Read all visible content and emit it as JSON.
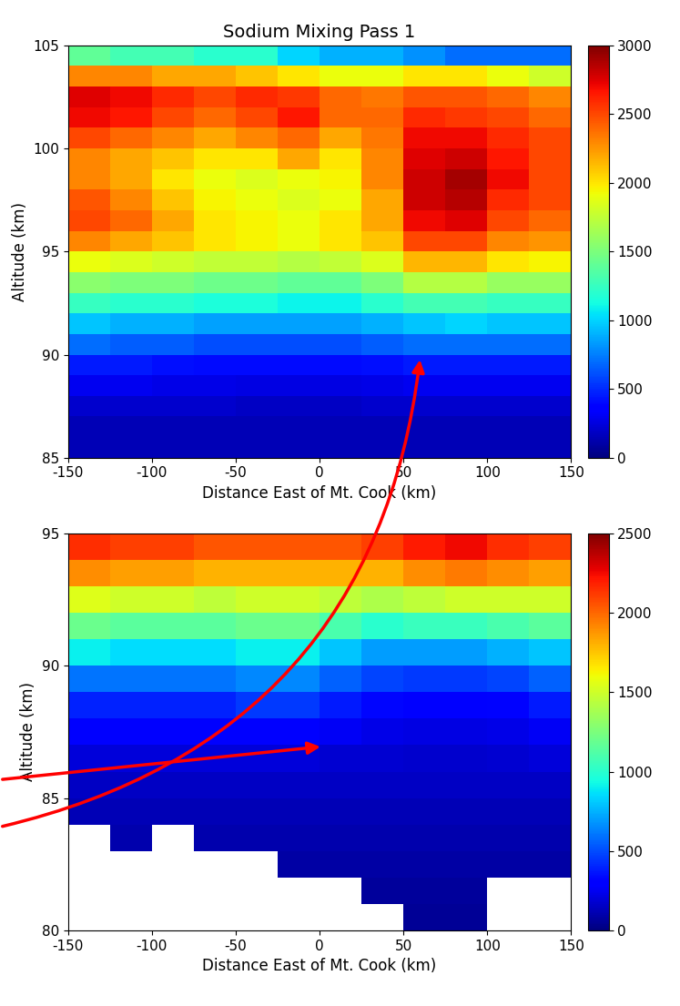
{
  "chart_data": [
    {
      "type": "heatmap",
      "title": "Sodium Mixing Pass 1",
      "x_label": "Distance East of Mt. Cook (km)",
      "y_label": "Altitude (km)",
      "xlim": [
        -150,
        150
      ],
      "ylim": [
        85,
        105
      ],
      "xticks": [
        -150,
        -100,
        -50,
        0,
        50,
        100,
        150
      ],
      "yticks": [
        85,
        90,
        95,
        100,
        105
      ],
      "x_edges": [
        -150,
        -125,
        -100,
        -75,
        -50,
        -25,
        0,
        25,
        50,
        75,
        100,
        125,
        150
      ],
      "y_edges": [
        85,
        86,
        87,
        88,
        89,
        90,
        91,
        92,
        93,
        94,
        95,
        96,
        97,
        98,
        99,
        100,
        101,
        102,
        103,
        104,
        105
      ],
      "cells": [
        [
          150,
          150,
          150,
          150,
          150,
          150,
          150,
          150,
          150,
          150,
          150,
          150
        ],
        [
          150,
          150,
          150,
          150,
          150,
          150,
          150,
          150,
          150,
          150,
          150,
          150
        ],
        [
          200,
          200,
          200,
          200,
          180,
          180,
          180,
          200,
          200,
          200,
          200,
          200
        ],
        [
          300,
          300,
          280,
          280,
          260,
          260,
          260,
          280,
          300,
          300,
          300,
          300
        ],
        [
          450,
          450,
          420,
          400,
          400,
          400,
          400,
          420,
          450,
          450,
          450,
          450
        ],
        [
          700,
          650,
          650,
          600,
          600,
          600,
          600,
          650,
          700,
          700,
          700,
          700
        ],
        [
          950,
          900,
          900,
          850,
          850,
          850,
          850,
          900,
          950,
          1000,
          950,
          950
        ],
        [
          1250,
          1200,
          1200,
          1150,
          1150,
          1100,
          1100,
          1200,
          1300,
          1300,
          1250,
          1250
        ],
        [
          1550,
          1500,
          1500,
          1450,
          1450,
          1400,
          1400,
          1500,
          1700,
          1700,
          1600,
          1600
        ],
        [
          1900,
          1850,
          1800,
          1750,
          1750,
          1700,
          1750,
          1850,
          2150,
          2150,
          2000,
          1950
        ],
        [
          2300,
          2200,
          2100,
          2000,
          1950,
          1900,
          2000,
          2100,
          2500,
          2500,
          2300,
          2250
        ],
        [
          2500,
          2400,
          2200,
          2000,
          1950,
          1900,
          2000,
          2200,
          2700,
          2750,
          2500,
          2400
        ],
        [
          2450,
          2300,
          2100,
          1950,
          1900,
          1850,
          1900,
          2200,
          2800,
          2850,
          2600,
          2500
        ],
        [
          2300,
          2200,
          2000,
          1900,
          1850,
          1900,
          1950,
          2300,
          2800,
          2900,
          2700,
          2500
        ],
        [
          2300,
          2200,
          2100,
          2000,
          2000,
          2200,
          2000,
          2300,
          2750,
          2800,
          2650,
          2500
        ],
        [
          2500,
          2400,
          2300,
          2200,
          2300,
          2400,
          2200,
          2350,
          2700,
          2700,
          2600,
          2500
        ],
        [
          2700,
          2650,
          2500,
          2400,
          2500,
          2650,
          2400,
          2400,
          2600,
          2550,
          2500,
          2400
        ],
        [
          2750,
          2700,
          2600,
          2500,
          2600,
          2550,
          2400,
          2350,
          2450,
          2450,
          2400,
          2300
        ],
        [
          2300,
          2300,
          2200,
          2200,
          2100,
          2000,
          1900,
          1900,
          2000,
          2000,
          1900,
          1800
        ],
        [
          1400,
          1300,
          1300,
          1200,
          1200,
          1000,
          900,
          900,
          800,
          700,
          700,
          700
        ]
      ],
      "colorbar_range": [
        0,
        3000
      ],
      "colorbar_ticks": [
        0,
        500,
        1000,
        1500,
        2000,
        2500,
        3000
      ]
    },
    {
      "type": "heatmap",
      "x_label": "Distance East of Mt. Cook (km)",
      "y_label": "Altitude (km)",
      "xlim": [
        -150,
        150
      ],
      "ylim": [
        80,
        95
      ],
      "xticks": [
        -150,
        -100,
        -50,
        0,
        50,
        100,
        150
      ],
      "yticks": [
        80,
        85,
        90,
        95
      ],
      "x_edges": [
        -150,
        -125,
        -100,
        -75,
        -50,
        -25,
        0,
        25,
        50,
        75,
        100,
        125,
        150
      ],
      "y_edges": [
        80,
        81,
        82,
        83,
        84,
        85,
        86,
        87,
        88,
        89,
        90,
        91,
        92,
        93,
        94,
        95
      ],
      "cells": [
        [
          null,
          null,
          null,
          null,
          null,
          null,
          null,
          null,
          50,
          50,
          null,
          null
        ],
        [
          null,
          null,
          null,
          null,
          null,
          null,
          null,
          60,
          60,
          60,
          null,
          null
        ],
        [
          null,
          null,
          null,
          null,
          null,
          80,
          80,
          80,
          80,
          80,
          80,
          80
        ],
        [
          null,
          100,
          null,
          100,
          100,
          100,
          100,
          100,
          100,
          100,
          100,
          100
        ],
        [
          120,
          120,
          120,
          120,
          120,
          120,
          120,
          120,
          120,
          120,
          120,
          120
        ],
        [
          150,
          150,
          150,
          150,
          150,
          150,
          150,
          150,
          150,
          150,
          150,
          150
        ],
        [
          200,
          200,
          200,
          200,
          200,
          200,
          180,
          180,
          170,
          170,
          180,
          200
        ],
        [
          280,
          280,
          280,
          280,
          300,
          300,
          260,
          230,
          220,
          220,
          230,
          260
        ],
        [
          400,
          400,
          400,
          400,
          450,
          450,
          380,
          330,
          300,
          300,
          320,
          380
        ],
        [
          600,
          600,
          600,
          600,
          650,
          650,
          550,
          480,
          450,
          450,
          480,
          550
        ],
        [
          900,
          850,
          850,
          850,
          900,
          900,
          800,
          700,
          700,
          700,
          750,
          800
        ],
        [
          1200,
          1150,
          1150,
          1150,
          1200,
          1200,
          1100,
          1000,
          1050,
          1050,
          1100,
          1150
        ],
        [
          1550,
          1500,
          1500,
          1450,
          1500,
          1500,
          1450,
          1400,
          1450,
          1500,
          1500,
          1500
        ],
        [
          1900,
          1850,
          1850,
          1800,
          1800,
          1800,
          1800,
          1800,
          1900,
          1950,
          1900,
          1850
        ],
        [
          2150,
          2100,
          2100,
          2050,
          2050,
          2050,
          2050,
          2100,
          2200,
          2250,
          2150,
          2100
        ]
      ],
      "colorbar_range": [
        0,
        2500
      ],
      "colorbar_ticks": [
        0,
        500,
        1000,
        1500,
        2000,
        2500
      ]
    }
  ]
}
